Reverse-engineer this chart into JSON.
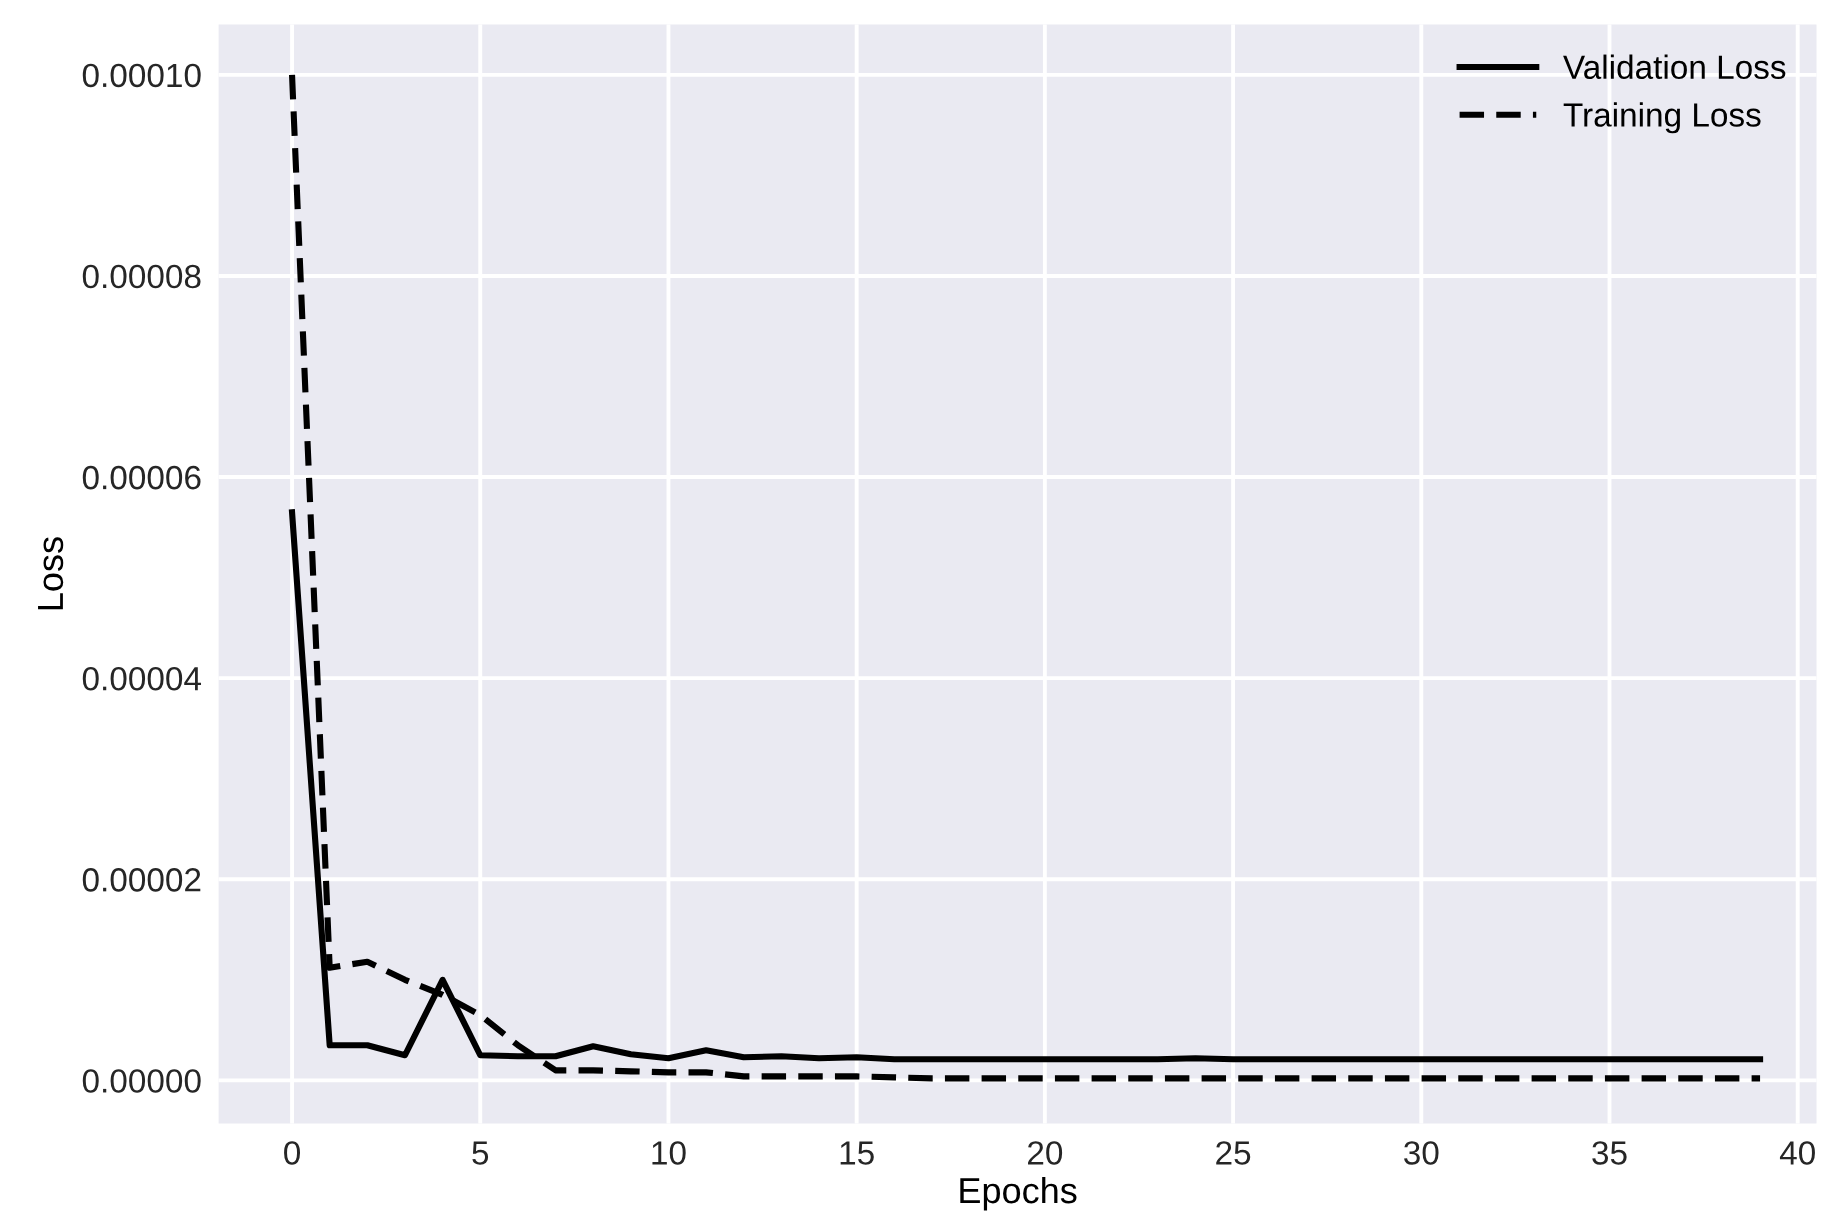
{
  "chart_data": {
    "type": "line",
    "xlabel": "Epochs",
    "ylabel": "Loss",
    "x": [
      0,
      1,
      2,
      3,
      4,
      5,
      6,
      7,
      8,
      9,
      10,
      11,
      12,
      13,
      14,
      15,
      16,
      17,
      18,
      19,
      20,
      21,
      22,
      23,
      24,
      25,
      26,
      27,
      28,
      29,
      30,
      31,
      32,
      33,
      34,
      35,
      36,
      37,
      38,
      39
    ],
    "series": [
      {
        "name": "Validation Loss",
        "color": "#000000",
        "line_style": "solid",
        "values": [
          5.65e-05,
          3.5e-06,
          3.5e-06,
          2.5e-06,
          1e-05,
          2.5e-06,
          2.4e-06,
          2.4e-06,
          3.4e-06,
          2.6e-06,
          2.2e-06,
          3e-06,
          2.3e-06,
          2.4e-06,
          2.2e-06,
          2.3e-06,
          2.1e-06,
          2.1e-06,
          2.1e-06,
          2.1e-06,
          2.1e-06,
          2.1e-06,
          2.1e-06,
          2.1e-06,
          2.2e-06,
          2.1e-06,
          2.1e-06,
          2.1e-06,
          2.1e-06,
          2.1e-06,
          2.1e-06,
          2.1e-06,
          2.1e-06,
          2.1e-06,
          2.1e-06,
          2.1e-06,
          2.1e-06,
          2.1e-06,
          2.1e-06,
          2.1e-06
        ]
      },
      {
        "name": "Training Loss",
        "color": "#000000",
        "line_style": "dashed",
        "values": [
          0.0001,
          1.12e-05,
          1.18e-05,
          1e-05,
          8.5e-06,
          6.5e-06,
          3.5e-06,
          1e-06,
          1e-06,
          9e-07,
          8e-07,
          8e-07,
          4e-07,
          4e-07,
          4e-07,
          4e-07,
          3e-07,
          2e-07,
          2e-07,
          2e-07,
          2e-07,
          2e-07,
          2e-07,
          2e-07,
          2e-07,
          2e-07,
          2e-07,
          2e-07,
          2e-07,
          2e-07,
          2e-07,
          2e-07,
          2e-07,
          2e-07,
          2e-07,
          2e-07,
          2e-07,
          2e-07,
          2e-07,
          2e-07
        ]
      }
    ],
    "xlim": [
      -1.95,
      40.5
    ],
    "xticks": [
      0,
      5,
      10,
      15,
      20,
      25,
      30,
      35,
      40
    ],
    "ylim": [
      -4.3e-06,
      0.000105
    ],
    "yticks": [
      {
        "value": 0,
        "label": "0.00000"
      },
      {
        "value": 2e-05,
        "label": "0.00002"
      },
      {
        "value": 4e-05,
        "label": "0.00004"
      },
      {
        "value": 6e-05,
        "label": "0.00006"
      },
      {
        "value": 8e-05,
        "label": "0.00008"
      },
      {
        "value": 0.0001,
        "label": "0.00010"
      }
    ],
    "grid": true,
    "legend": "upper right",
    "marker": "none"
  }
}
